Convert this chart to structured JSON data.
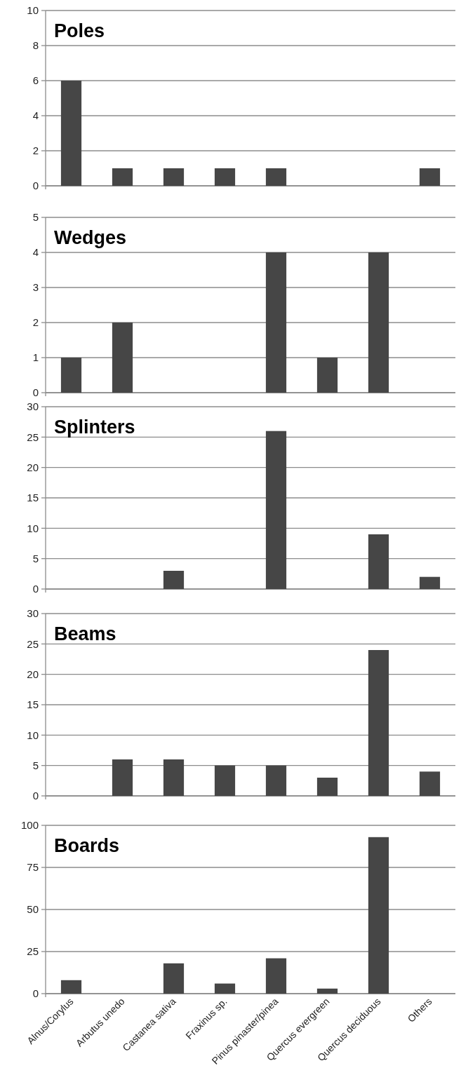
{
  "chart_data": [
    {
      "type": "bar",
      "title": "Poles",
      "categories": [
        null,
        null,
        null,
        null,
        null,
        null,
        null,
        null
      ],
      "values": [
        6,
        1,
        1,
        1,
        1,
        0,
        0,
        1
      ],
      "color": "#464646",
      "ylim": [
        0,
        10
      ],
      "yticks": [
        0,
        2,
        4,
        6,
        8,
        10
      ],
      "grid": "y"
    },
    {
      "type": "bar",
      "title": "Wedges",
      "categories": [
        null,
        null,
        null,
        null,
        null,
        null,
        null,
        null
      ],
      "values": [
        1,
        2,
        0,
        0,
        4,
        1,
        4,
        0
      ],
      "color": "#464646",
      "ylim": [
        0,
        5
      ],
      "yticks": [
        0,
        1,
        2,
        3,
        4,
        5
      ],
      "grid": "y"
    },
    {
      "type": "bar",
      "title": "Splinters",
      "categories": [
        null,
        null,
        null,
        null,
        null,
        null,
        null,
        null
      ],
      "values": [
        0,
        0,
        3,
        0,
        26,
        0,
        9,
        2
      ],
      "color": "#464646",
      "ylim": [
        0,
        30
      ],
      "yticks": [
        0,
        5,
        10,
        15,
        20,
        25,
        30
      ],
      "grid": "y"
    },
    {
      "type": "bar",
      "title": "Beams",
      "categories": [
        null,
        null,
        null,
        null,
        null,
        null,
        null,
        null
      ],
      "values": [
        0,
        6,
        6,
        5,
        5,
        3,
        24,
        4
      ],
      "color": "#464646",
      "ylim": [
        0,
        30
      ],
      "yticks": [
        0,
        5,
        10,
        15,
        20,
        25,
        30
      ],
      "grid": "y"
    },
    {
      "type": "bar",
      "title": "Boards",
      "categories": [
        "Alnus/Corylus",
        "Arbutus unedo",
        "Castanea sativa",
        "Fraxinus sp.",
        "Pinus pinaster/pinea",
        "Quercus evergreen",
        "Quercus deciduous",
        "Others"
      ],
      "values": [
        8,
        0,
        18,
        6,
        21,
        3,
        93,
        0
      ],
      "color": "#464646",
      "ylim": [
        0,
        100
      ],
      "yticks": [
        0,
        25,
        50,
        75,
        100
      ],
      "grid": "y"
    }
  ]
}
